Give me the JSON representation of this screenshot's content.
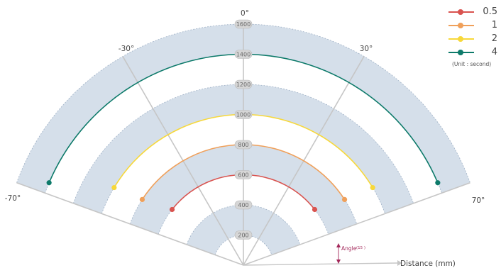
{
  "chart_data": {
    "type": "polar-arc",
    "angle_ticks": [
      {
        "label": "0°",
        "angle": 0
      },
      {
        "label": "-30°",
        "angle": -30
      },
      {
        "label": "30°",
        "angle": 30
      },
      {
        "label": "-70°",
        "angle": -70
      },
      {
        "label": "70°",
        "angle": 70
      }
    ],
    "radial_ticks": [
      200,
      400,
      600,
      800,
      1000,
      1200,
      1400,
      1600
    ],
    "bands": [
      [
        200,
        400
      ],
      [
        600,
        800
      ],
      [
        1000,
        1200
      ],
      [
        1400,
        1600
      ]
    ],
    "angle_range": [
      -70,
      70
    ],
    "series": [
      {
        "name": "0.5",
        "radius": 600,
        "start_angle": -52,
        "end_angle": 52,
        "color": "#d9534f"
      },
      {
        "name": "1",
        "radius": 800,
        "start_angle": -57,
        "end_angle": 57,
        "color": "#f0a05a"
      },
      {
        "name": "2",
        "radius": 1000,
        "start_angle": -59,
        "end_angle": 59,
        "color": "#f7d83a"
      },
      {
        "name": "4",
        "radius": 1400,
        "start_angle": -67,
        "end_angle": 67,
        "color": "#0d7a6a"
      }
    ],
    "legend_unit": "(Unit : second)",
    "axis_label": "Distance (mm)",
    "angle_annotation": "Angle",
    "angle_annotation_value": "(15 )"
  },
  "colors": {
    "band": "#d5dfea",
    "band_edge": "#9fb1c6",
    "grid": "#c6c6c6",
    "tick_pill": "#d6d6d6",
    "annotation": "#a3285a"
  }
}
